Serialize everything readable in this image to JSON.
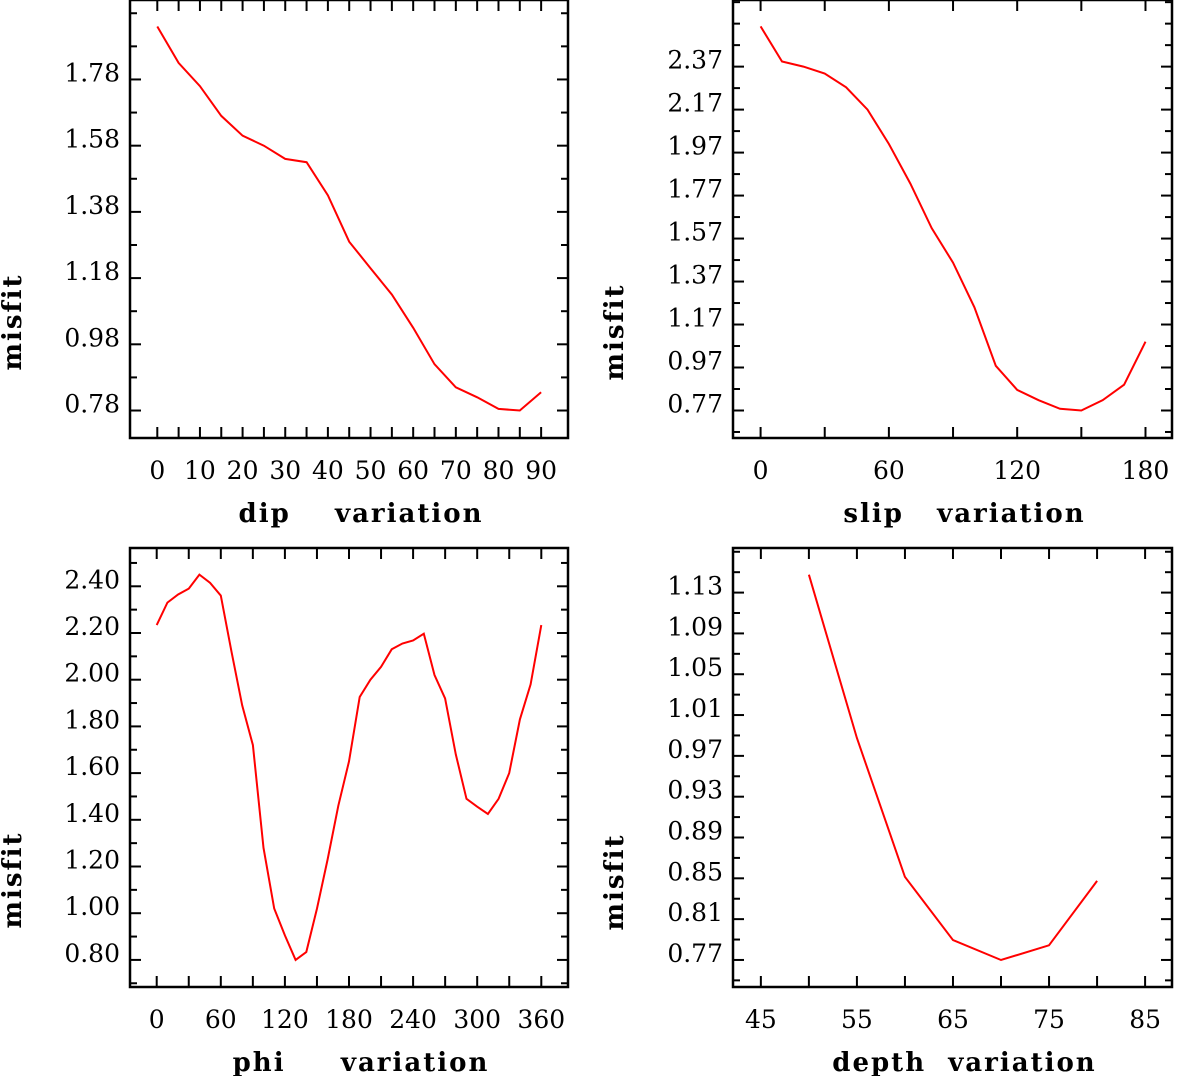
{
  "chart_data": [
    {
      "type": "line",
      "title": "",
      "xlabel": "dip    variation",
      "ylabel": "misfit",
      "xlim": [
        -6.4,
        96.3
      ],
      "ylim": [
        0.697,
        2.02
      ],
      "xtick_values": [
        0,
        10,
        20,
        30,
        40,
        50,
        60,
        70,
        80,
        90
      ],
      "xtick_labels": [
        "0",
        "10",
        "20",
        "30",
        "40",
        "50",
        "60",
        "70",
        "80",
        "90"
      ],
      "x_minor_step": 5,
      "ytick_values": [
        0.78,
        0.98,
        1.18,
        1.38,
        1.58,
        1.78
      ],
      "ytick_labels": [
        "0.78",
        "0.98",
        "1.18",
        "1.38",
        "1.58",
        "1.78"
      ],
      "y_minor_step": 0.1,
      "grid": false,
      "color": "#ff0000",
      "x": [
        0,
        5,
        10,
        15,
        20,
        25,
        30,
        35,
        40,
        45,
        50,
        55,
        60,
        65,
        70,
        75,
        80,
        85,
        90
      ],
      "y": [
        1.94,
        1.83,
        1.76,
        1.67,
        1.61,
        1.58,
        1.54,
        1.53,
        1.43,
        1.29,
        1.21,
        1.13,
        1.03,
        0.92,
        0.85,
        0.82,
        0.785,
        0.78,
        0.835
      ]
    },
    {
      "type": "line",
      "title": "",
      "xlabel": "slip   variation",
      "ylabel": "misfit",
      "xlim": [
        -12.9,
        192.4
      ],
      "ylim": [
        0.642,
        2.68
      ],
      "xtick_values": [
        0,
        60,
        120,
        180
      ],
      "xtick_labels": [
        "0",
        "60",
        "120",
        "180"
      ],
      "x_minor_step": 30,
      "ytick_values": [
        0.77,
        0.97,
        1.17,
        1.37,
        1.57,
        1.77,
        1.97,
        2.17,
        2.37
      ],
      "ytick_labels": [
        "0.77",
        "0.97",
        "1.17",
        "1.37",
        "1.57",
        "1.77",
        "1.97",
        "2.17",
        "2.37"
      ],
      "y_minor_step": 0.1,
      "grid": false,
      "color": "#ff0000",
      "x": [
        0,
        10,
        20,
        30,
        40,
        50,
        60,
        70,
        80,
        90,
        100,
        110,
        120,
        130,
        140,
        150,
        160,
        170,
        180
      ],
      "y": [
        2.557,
        2.394,
        2.37,
        2.338,
        2.274,
        2.17,
        2.01,
        1.826,
        1.618,
        1.458,
        1.25,
        0.978,
        0.866,
        0.818,
        0.778,
        0.77,
        0.818,
        0.89,
        1.09
      ]
    },
    {
      "type": "line",
      "title": "",
      "xlabel": "phi     variation",
      "ylabel": "misfit",
      "xlim": [
        -25,
        385
      ],
      "ylim": [
        0.684,
        2.564
      ],
      "xtick_values": [
        0,
        60,
        120,
        180,
        240,
        300,
        360
      ],
      "xtick_labels": [
        "0",
        "60",
        "120",
        "180",
        "240",
        "300",
        "360"
      ],
      "x_minor_step": 30,
      "ytick_values": [
        0.8,
        1.0,
        1.2,
        1.4,
        1.6,
        1.8,
        2.0,
        2.2,
        2.4
      ],
      "ytick_labels": [
        "0.80",
        "1.00",
        "1.20",
        "1.40",
        "1.60",
        "1.80",
        "2.00",
        "2.20",
        "2.40"
      ],
      "y_minor_step": 0.1,
      "grid": false,
      "color": "#ff0000",
      "x": [
        0,
        10,
        20,
        30,
        40,
        50,
        60,
        70,
        80,
        90,
        100,
        110,
        120,
        130,
        140,
        150,
        160,
        170,
        180,
        190,
        200,
        210,
        220,
        230,
        240,
        250,
        260,
        270,
        280,
        290,
        300,
        310,
        320,
        330,
        340,
        350,
        360
      ],
      "y": [
        2.234,
        2.33,
        2.365,
        2.39,
        2.45,
        2.415,
        2.36,
        2.12,
        1.89,
        1.72,
        1.28,
        1.02,
        0.905,
        0.8,
        0.834,
        1.02,
        1.23,
        1.46,
        1.65,
        1.926,
        2.0,
        2.055,
        2.13,
        2.155,
        2.168,
        2.197,
        2.02,
        1.92,
        1.68,
        1.49,
        1.456,
        1.425,
        1.49,
        1.6,
        1.83,
        1.98,
        2.234
      ]
    },
    {
      "type": "line",
      "title": "",
      "xlabel": "depth  variation",
      "ylabel": "misfit",
      "xlim": [
        42.1,
        87.8
      ],
      "ylim": [
        0.7435,
        1.1737
      ],
      "xtick_values": [
        45,
        55,
        65,
        75,
        85
      ],
      "xtick_labels": [
        "45",
        "55",
        "65",
        "75",
        "85"
      ],
      "x_minor_step": 5,
      "ytick_values": [
        0.77,
        0.81,
        0.85,
        0.89,
        0.93,
        0.97,
        1.01,
        1.05,
        1.09,
        1.13
      ],
      "ytick_labels": [
        "0.77",
        "0.81",
        "0.85",
        "0.89",
        "0.93",
        "0.97",
        "1.01",
        "1.05",
        "1.09",
        "1.13"
      ],
      "y_minor_step": 0.02,
      "grid": false,
      "color": "#ff0000",
      "x": [
        50,
        55,
        60,
        65,
        70,
        75,
        80
      ],
      "y": [
        1.1475,
        0.9875,
        0.8515,
        0.7895,
        0.77,
        0.7844,
        0.8475
      ]
    }
  ]
}
